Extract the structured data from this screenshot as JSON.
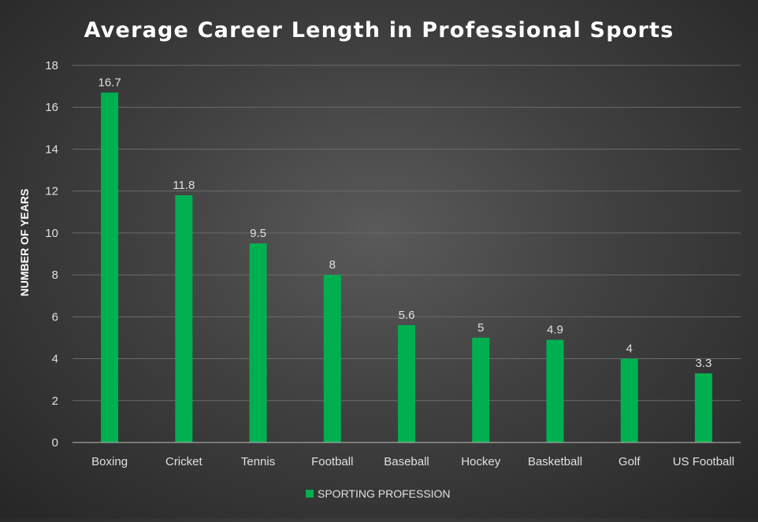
{
  "chart_data": {
    "type": "bar",
    "title": "Average Career Length in Professional Sports",
    "xlabel": "",
    "ylabel": "NUMBER OF YEARS",
    "ylim": [
      0,
      18
    ],
    "ytick_step": 2,
    "grid": true,
    "legend_position": "bottom",
    "bar_color": "#00b050",
    "categories": [
      "Boxing",
      "Cricket",
      "Tennis",
      "Football",
      "Baseball",
      "Hockey",
      "Basketball",
      "Golf",
      "US Football"
    ],
    "series": [
      {
        "name": "SPORTING PROFESSION",
        "values": [
          16.7,
          11.8,
          9.5,
          8,
          5.6,
          5,
          4.9,
          4,
          3.3
        ]
      }
    ]
  }
}
